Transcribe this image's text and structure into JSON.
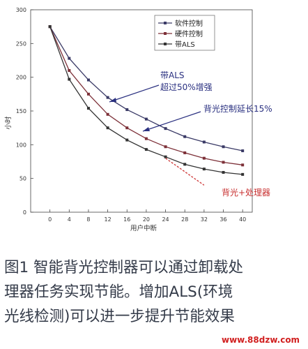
{
  "chart_data": {
    "type": "line",
    "xlabel": "用户中断",
    "ylabel": "小时",
    "xlim": [
      -4,
      42
    ],
    "ylim": [
      0,
      300
    ],
    "x_ticks": [
      "0",
      "4",
      "8",
      "12",
      "16",
      "20",
      "24",
      "28",
      "32",
      "36",
      "40"
    ],
    "y_ticks": [
      "0",
      "50",
      "100",
      "150",
      "200",
      "250",
      "300"
    ],
    "grid": false,
    "legend_position": "top-right",
    "series": [
      {
        "name": "软件控制",
        "color": "#3a3a66",
        "marker": "square",
        "x": [
          0,
          4,
          8,
          12,
          16,
          20,
          24,
          28,
          32,
          36,
          40
        ],
        "y": [
          275,
          228,
          196,
          170,
          152,
          138,
          124,
          112,
          104,
          97,
          91
        ]
      },
      {
        "name": "硬件控制",
        "color": "#7d3038",
        "marker": "square",
        "x": [
          0,
          4,
          8,
          12,
          16,
          20,
          24,
          28,
          32,
          36,
          40
        ],
        "y": [
          275,
          210,
          175,
          145,
          125,
          109,
          97,
          88,
          80,
          74,
          70
        ]
      },
      {
        "name": "带ALS",
        "color": "#333333",
        "marker": "square",
        "x": [
          0,
          4,
          8,
          12,
          16,
          20,
          24,
          28,
          32,
          36,
          40
        ],
        "y": [
          275,
          197,
          154,
          125,
          107,
          93,
          82,
          71,
          64,
          59,
          56
        ]
      },
      {
        "name": "背光+处理器",
        "color": "#d04040",
        "marker": "none",
        "dashed": true,
        "x": [
          24,
          26,
          28,
          30,
          32
        ],
        "y": [
          80,
          70,
          60,
          50,
          40
        ]
      }
    ],
    "annotations": [
      {
        "text_lines": [
          "带ALS",
          "超过50%增强"
        ],
        "color": "#2a3080"
      },
      {
        "text_lines": [
          "背光控制延长15%"
        ],
        "color": "#2a3080"
      },
      {
        "text_lines": [
          "背光+处理器"
        ],
        "color": "#c83030"
      }
    ]
  },
  "caption": {
    "line1": "图1  智能背光控制器可以通过卸载处",
    "line2": "理器任务实现节能。增加ALS(环境",
    "line3": "光线检测)可以进一步提升节能效果"
  },
  "watermark": "www.88dzw.com"
}
